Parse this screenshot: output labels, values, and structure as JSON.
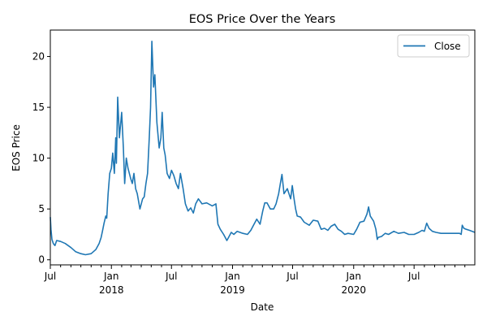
{
  "chart_data": {
    "type": "line",
    "title": "EOS Price Over the Years",
    "xlabel": "Date",
    "ylabel": "EOS Price",
    "xlim": [
      "2017-07-01",
      "2020-12-31"
    ],
    "ylim": [
      -0.5,
      22.6
    ],
    "yticks": [
      0,
      5,
      10,
      15,
      20
    ],
    "xticks": [
      {
        "date": "2017-07-01",
        "label": "Jul",
        "sublabel": ""
      },
      {
        "date": "2018-01-01",
        "label": "Jan",
        "sublabel": "2018"
      },
      {
        "date": "2018-07-01",
        "label": "Jul",
        "sublabel": ""
      },
      {
        "date": "2019-01-01",
        "label": "Jan",
        "sublabel": "2019"
      },
      {
        "date": "2019-07-01",
        "label": "Jul",
        "sublabel": ""
      },
      {
        "date": "2020-01-01",
        "label": "Jan",
        "sublabel": "2020"
      },
      {
        "date": "2020-07-01",
        "label": "Jul",
        "sublabel": ""
      }
    ],
    "legend": {
      "position": "top-right"
    },
    "grid": false,
    "line_color": "#1f77b4",
    "series": [
      {
        "name": "Close",
        "x": [
          "2017-07-01",
          "2017-07-03",
          "2017-07-06",
          "2017-07-10",
          "2017-07-15",
          "2017-07-20",
          "2017-08-01",
          "2017-08-15",
          "2017-09-01",
          "2017-09-15",
          "2017-10-01",
          "2017-10-15",
          "2017-11-01",
          "2017-11-15",
          "2017-11-25",
          "2017-12-01",
          "2017-12-05",
          "2017-12-10",
          "2017-12-15",
          "2017-12-18",
          "2017-12-22",
          "2017-12-27",
          "2018-01-01",
          "2018-01-05",
          "2018-01-10",
          "2018-01-14",
          "2018-01-16",
          "2018-01-20",
          "2018-01-25",
          "2018-02-01",
          "2018-02-06",
          "2018-02-10",
          "2018-02-15",
          "2018-02-20",
          "2018-02-28",
          "2018-03-05",
          "2018-03-10",
          "2018-03-15",
          "2018-03-20",
          "2018-03-28",
          "2018-04-05",
          "2018-04-10",
          "2018-04-15",
          "2018-04-20",
          "2018-04-25",
          "2018-04-29",
          "2018-05-03",
          "2018-05-08",
          "2018-05-12",
          "2018-05-18",
          "2018-05-25",
          "2018-05-30",
          "2018-06-03",
          "2018-06-08",
          "2018-06-12",
          "2018-06-18",
          "2018-06-25",
          "2018-07-01",
          "2018-07-08",
          "2018-07-15",
          "2018-07-22",
          "2018-07-28",
          "2018-08-05",
          "2018-08-12",
          "2018-08-20",
          "2018-08-28",
          "2018-09-05",
          "2018-09-12",
          "2018-09-20",
          "2018-10-01",
          "2018-10-15",
          "2018-11-01",
          "2018-11-12",
          "2018-11-18",
          "2018-11-25",
          "2018-12-05",
          "2018-12-15",
          "2018-12-20",
          "2018-12-28",
          "2019-01-05",
          "2019-01-15",
          "2019-02-01",
          "2019-02-15",
          "2019-02-25",
          "2019-03-05",
          "2019-03-15",
          "2019-03-25",
          "2019-04-02",
          "2019-04-08",
          "2019-04-15",
          "2019-04-25",
          "2019-05-05",
          "2019-05-12",
          "2019-05-20",
          "2019-05-25",
          "2019-05-30",
          "2019-06-05",
          "2019-06-15",
          "2019-06-25",
          "2019-06-30",
          "2019-07-05",
          "2019-07-10",
          "2019-07-15",
          "2019-07-25",
          "2019-08-05",
          "2019-08-20",
          "2019-09-01",
          "2019-09-15",
          "2019-09-25",
          "2019-10-05",
          "2019-10-15",
          "2019-10-25",
          "2019-11-05",
          "2019-11-15",
          "2019-11-25",
          "2019-12-05",
          "2019-12-15",
          "2020-01-01",
          "2020-01-10",
          "2020-01-20",
          "2020-02-01",
          "2020-02-10",
          "2020-02-15",
          "2020-02-20",
          "2020-03-01",
          "2020-03-08",
          "2020-03-12",
          "2020-03-15",
          "2020-03-25",
          "2020-04-05",
          "2020-04-15",
          "2020-05-01",
          "2020-05-15",
          "2020-06-01",
          "2020-06-15",
          "2020-07-01",
          "2020-07-15",
          "2020-07-25",
          "2020-08-01",
          "2020-08-08",
          "2020-08-15",
          "2020-08-25",
          "2020-09-05",
          "2020-09-20",
          "2020-10-01",
          "2020-10-15",
          "2020-11-01",
          "2020-11-15",
          "2020-11-20",
          "2020-11-23",
          "2020-11-28",
          "2020-12-05",
          "2020-12-15",
          "2020-12-31"
        ],
        "values": [
          4.2,
          3.0,
          2.0,
          1.6,
          1.4,
          1.9,
          1.8,
          1.6,
          1.2,
          0.8,
          0.6,
          0.5,
          0.6,
          1.0,
          1.6,
          2.2,
          2.8,
          3.6,
          4.3,
          4.1,
          6.5,
          8.5,
          9.0,
          10.5,
          8.5,
          12.0,
          9.5,
          16.0,
          12.0,
          14.5,
          11.0,
          7.5,
          10.0,
          9.0,
          8.0,
          7.5,
          8.5,
          7.0,
          6.5,
          5.0,
          6.0,
          6.2,
          7.5,
          8.5,
          12.0,
          15.0,
          21.5,
          17.0,
          18.2,
          13.5,
          11.0,
          12.0,
          14.5,
          11.0,
          10.3,
          8.5,
          8.0,
          8.8,
          8.3,
          7.5,
          7.0,
          8.5,
          7.0,
          5.5,
          4.8,
          5.1,
          4.6,
          5.5,
          6.0,
          5.5,
          5.6,
          5.3,
          5.5,
          3.5,
          3.0,
          2.5,
          1.9,
          2.2,
          2.7,
          2.5,
          2.8,
          2.6,
          2.5,
          2.9,
          3.4,
          4.0,
          3.5,
          4.8,
          5.6,
          5.6,
          5.0,
          5.0,
          5.5,
          6.5,
          7.5,
          8.4,
          6.5,
          7.0,
          6.0,
          7.3,
          6.1,
          5.0,
          4.3,
          4.2,
          3.7,
          3.4,
          3.9,
          3.8,
          3.0,
          3.1,
          2.9,
          3.3,
          3.5,
          3.0,
          2.8,
          2.5,
          2.6,
          2.5,
          3.0,
          3.7,
          3.8,
          4.5,
          5.2,
          4.3,
          3.8,
          3.0,
          2.0,
          2.2,
          2.3,
          2.6,
          2.5,
          2.8,
          2.6,
          2.7,
          2.5,
          2.5,
          2.7,
          2.9,
          2.8,
          3.6,
          3.1,
          2.8,
          2.7,
          2.6,
          2.6,
          2.6,
          2.6,
          2.6,
          2.5,
          3.4,
          3.1,
          3.0,
          2.9,
          2.7
        ]
      }
    ]
  }
}
